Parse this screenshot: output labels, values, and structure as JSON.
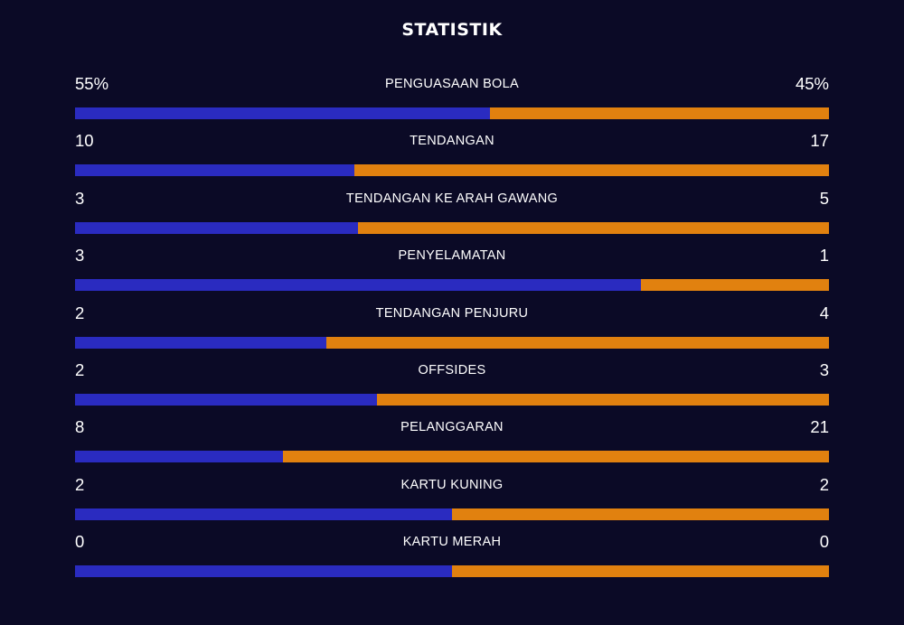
{
  "title": "STATISTIK",
  "colors": {
    "background": "#0b0a26",
    "home": "#2a2bc0",
    "away": "#e1810f",
    "text": "#ffffff"
  },
  "stats": [
    {
      "label": "PENGUASAAN BOLA",
      "home": "55%",
      "away": "45%",
      "home_share": 0.55
    },
    {
      "label": "TENDANGAN",
      "home": "10",
      "away": "17",
      "home_share": 0.37
    },
    {
      "label": "TENDANGAN KE ARAH GAWANG",
      "home": "3",
      "away": "5",
      "home_share": 0.375
    },
    {
      "label": "PENYELAMATAN",
      "home": "3",
      "away": "1",
      "home_share": 0.75
    },
    {
      "label": "TENDANGAN PENJURU",
      "home": "2",
      "away": "4",
      "home_share": 0.333
    },
    {
      "label": "OFFSIDES",
      "home": "2",
      "away": "3",
      "home_share": 0.4
    },
    {
      "label": "PELANGGARAN",
      "home": "8",
      "away": "21",
      "home_share": 0.276
    },
    {
      "label": "KARTU KUNING",
      "home": "2",
      "away": "2",
      "home_share": 0.5
    },
    {
      "label": "KARTU MERAH",
      "home": "0",
      "away": "0",
      "home_share": 0.5
    }
  ]
}
